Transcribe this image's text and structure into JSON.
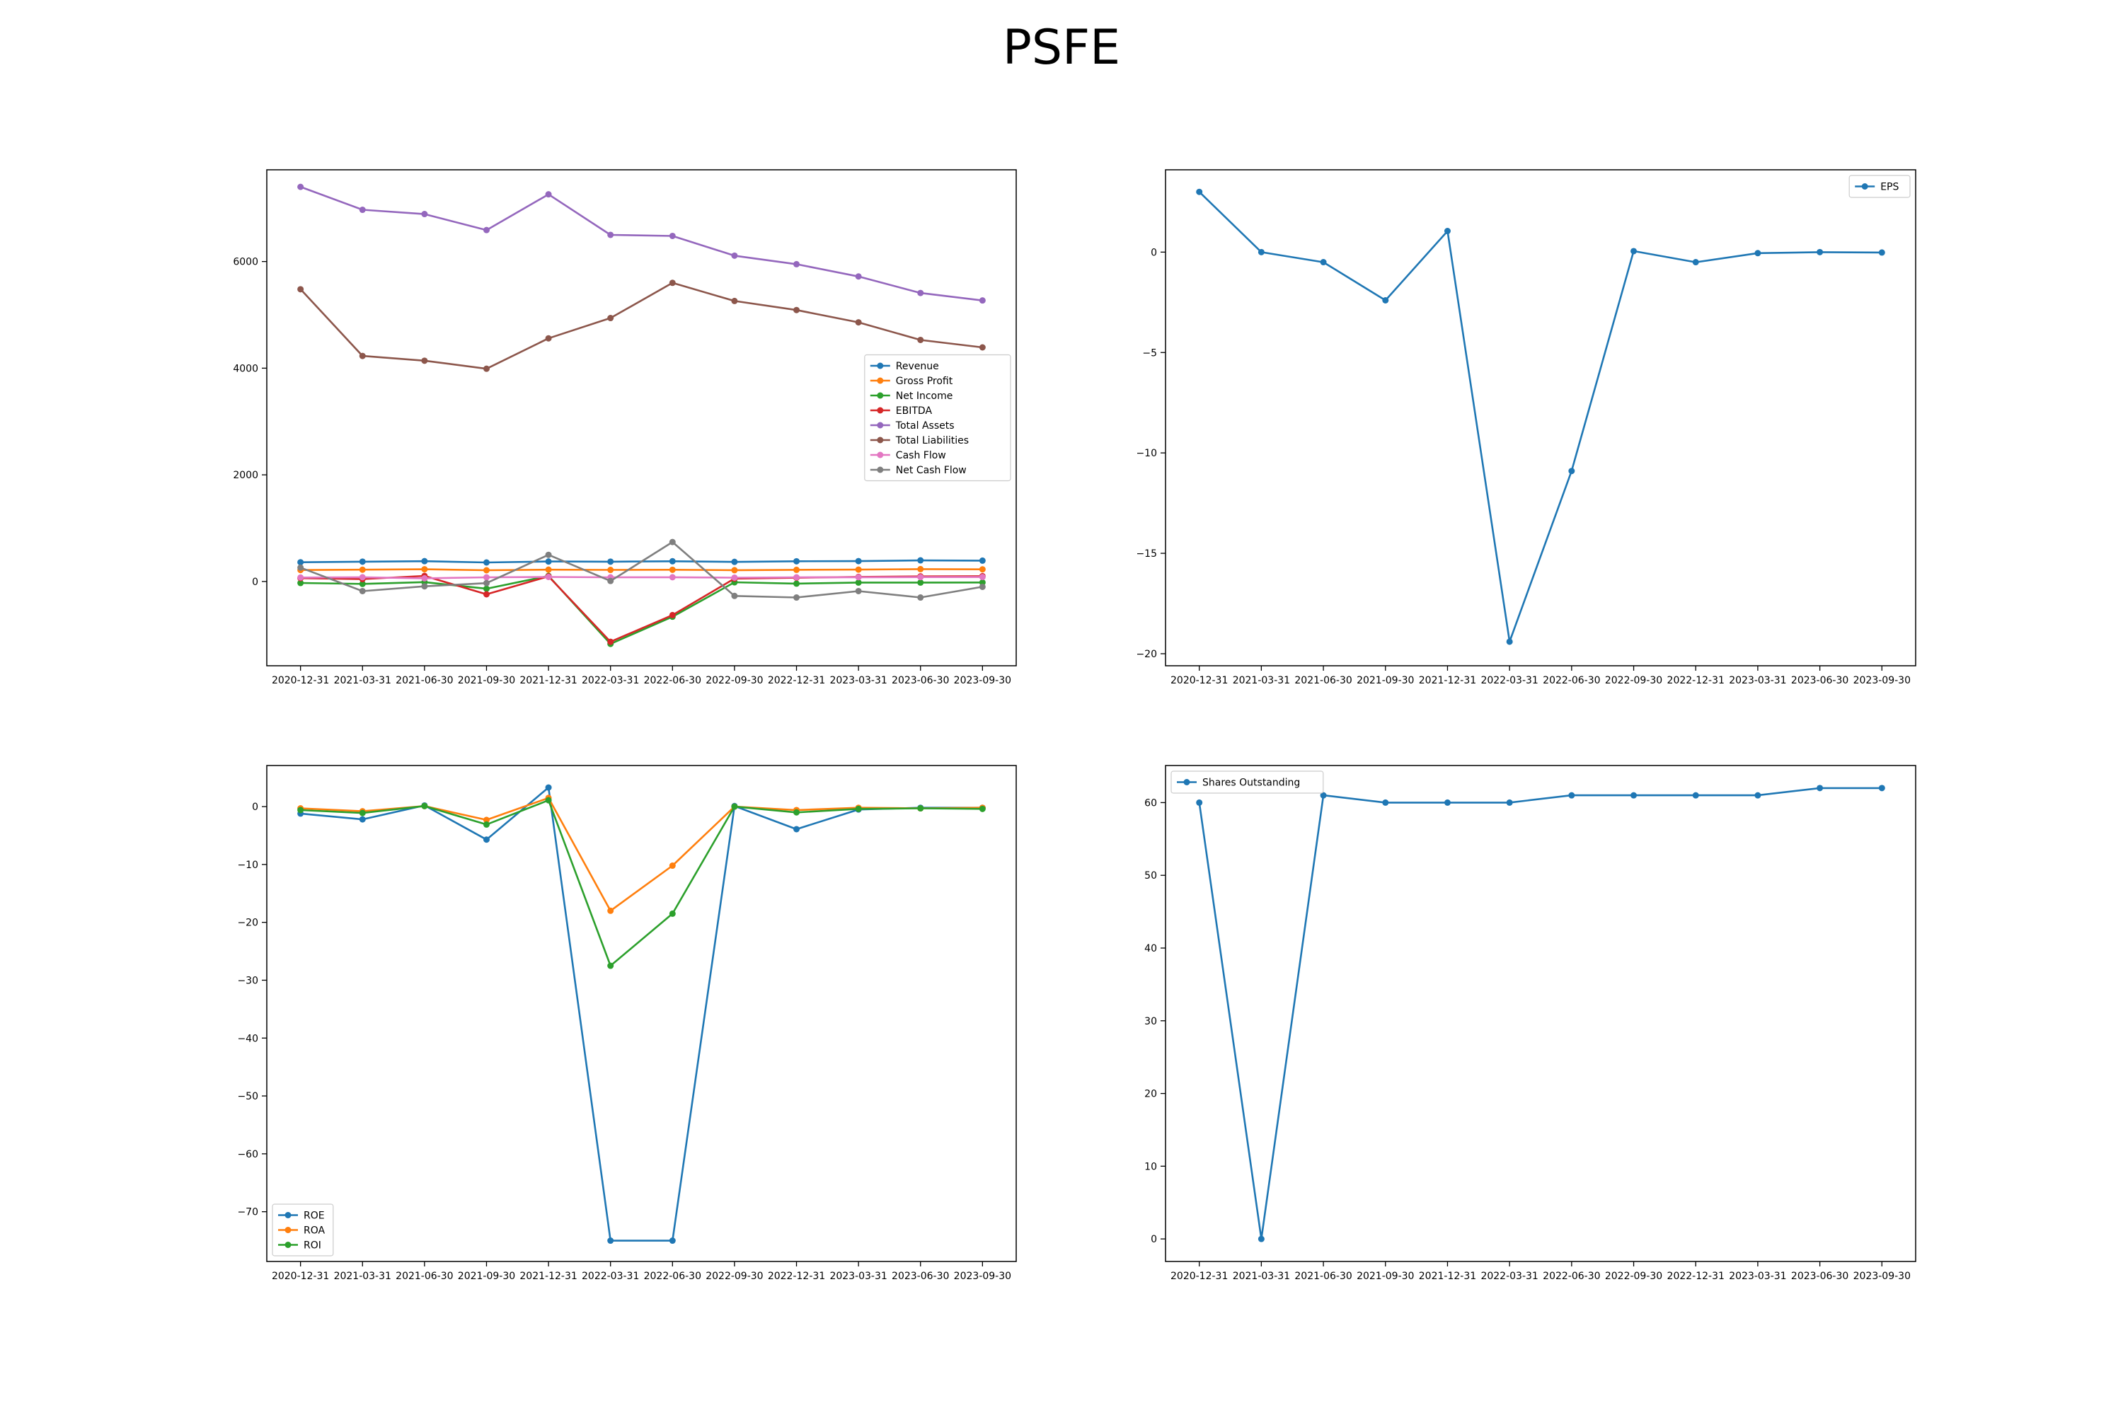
{
  "title": "PSFE",
  "chart_data": [
    {
      "type": "line",
      "x": [
        "2020-12-31",
        "2021-03-31",
        "2021-06-30",
        "2021-09-30",
        "2021-12-31",
        "2022-03-31",
        "2022-06-30",
        "2022-09-30",
        "2022-12-31",
        "2023-03-31",
        "2023-06-30",
        "2023-09-30"
      ],
      "ylim": [
        -1580,
        7720
      ],
      "yticks": [
        0,
        2000,
        4000,
        6000
      ],
      "ytick_labels": [
        "0",
        "2000",
        "4000",
        "6000"
      ],
      "legend": {
        "loc": "center right"
      },
      "series": [
        {
          "name": "Revenue",
          "color": "#1f77b4",
          "values": [
            361,
            372,
            381,
            357,
            375,
            372,
            380,
            368,
            379,
            382,
            396,
            391
          ]
        },
        {
          "name": "Gross Profit",
          "color": "#ff7f0e",
          "values": [
            215,
            221,
            230,
            211,
            222,
            217,
            220,
            212,
            219,
            223,
            232,
            228
          ]
        },
        {
          "name": "Net Income",
          "color": "#2ca02c",
          "values": [
            -28,
            -45,
            -12,
            -135,
            105,
            -1170,
            -660,
            -15,
            -40,
            -20,
            -20,
            -18
          ]
        },
        {
          "name": "EBITDA",
          "color": "#d62728",
          "values": [
            62,
            45,
            105,
            -240,
            97,
            -1130,
            -630,
            54,
            70,
            86,
            96,
            100
          ]
        },
        {
          "name": "Total Assets",
          "color": "#9467bd",
          "values": [
            7400,
            6970,
            6890,
            6590,
            7260,
            6500,
            6480,
            6110,
            5950,
            5720,
            5410,
            5270
          ]
        },
        {
          "name": "Total Liabilities",
          "color": "#8c564b",
          "values": [
            5480,
            4230,
            4140,
            3990,
            4560,
            4940,
            5600,
            5260,
            5090,
            4860,
            4530,
            4390
          ]
        },
        {
          "name": "Cash Flow",
          "color": "#e377c2",
          "values": [
            75,
            80,
            60,
            78,
            85,
            78,
            80,
            72,
            78,
            80,
            82,
            84
          ]
        },
        {
          "name": "Net Cash Flow",
          "color": "#7f7f7f",
          "values": [
            260,
            -180,
            -90,
            -30,
            500,
            10,
            740,
            -270,
            -300,
            -180,
            -300,
            -100
          ]
        }
      ]
    },
    {
      "type": "line",
      "x": [
        "2020-12-31",
        "2021-03-31",
        "2021-06-30",
        "2021-09-30",
        "2021-12-31",
        "2022-03-31",
        "2022-06-30",
        "2022-09-30",
        "2022-12-31",
        "2023-03-31",
        "2023-06-30",
        "2023-09-30"
      ],
      "ylim": [
        -20.6,
        4.1
      ],
      "yticks": [
        -20,
        -15,
        -10,
        -5,
        0
      ],
      "ytick_labels": [
        "−20",
        "−15",
        "−10",
        "−5",
        "0"
      ],
      "legend": {
        "loc": "upper right"
      },
      "series": [
        {
          "name": "EPS",
          "color": "#1f77b4",
          "values": [
            3.0,
            0.0,
            -0.5,
            -2.4,
            1.05,
            -19.4,
            -10.9,
            0.05,
            -0.5,
            -0.05,
            0.0,
            -0.02
          ]
        }
      ]
    },
    {
      "type": "line",
      "x": [
        "2020-12-31",
        "2021-03-31",
        "2021-06-30",
        "2021-09-30",
        "2021-12-31",
        "2022-03-31",
        "2022-06-30",
        "2022-09-30",
        "2022-12-31",
        "2023-03-31",
        "2023-06-30",
        "2023-09-30"
      ],
      "ylim": [
        -78.6,
        7.1
      ],
      "yticks": [
        -70,
        -60,
        -50,
        -40,
        -30,
        -20,
        -10,
        0
      ],
      "ytick_labels": [
        "−70",
        "−60",
        "−50",
        "−40",
        "−30",
        "−20",
        "−10",
        "0"
      ],
      "legend": {
        "loc": "lower left"
      },
      "series": [
        {
          "name": "ROE",
          "color": "#1f77b4",
          "values": [
            -1.2,
            -2.2,
            0.2,
            -5.7,
            3.3,
            -75.0,
            -75.0,
            0.1,
            -3.9,
            -0.5,
            -0.2,
            -0.2
          ]
        },
        {
          "name": "ROA",
          "color": "#ff7f0e",
          "values": [
            -0.3,
            -0.8,
            0.1,
            -2.3,
            1.5,
            -18.0,
            -10.2,
            0.0,
            -0.6,
            -0.2,
            -0.3,
            -0.2
          ]
        },
        {
          "name": "ROI",
          "color": "#2ca02c",
          "values": [
            -0.6,
            -1.1,
            0.1,
            -3.1,
            1.1,
            -27.5,
            -18.5,
            0.0,
            -1.0,
            -0.4,
            -0.3,
            -0.4
          ]
        }
      ]
    },
    {
      "type": "line",
      "x": [
        "2020-12-31",
        "2021-03-31",
        "2021-06-30",
        "2021-09-30",
        "2021-12-31",
        "2022-03-31",
        "2022-06-30",
        "2022-09-30",
        "2022-12-31",
        "2023-03-31",
        "2023-06-30",
        "2023-09-30"
      ],
      "ylim": [
        -3.1,
        65.1
      ],
      "yticks": [
        0,
        10,
        20,
        30,
        40,
        50,
        60
      ],
      "ytick_labels": [
        "0",
        "10",
        "20",
        "30",
        "40",
        "50",
        "60"
      ],
      "legend": {
        "loc": "upper left"
      },
      "series": [
        {
          "name": "Shares Outstanding",
          "color": "#1f77b4",
          "values": [
            60,
            0,
            61,
            60,
            60,
            60,
            61,
            61,
            61,
            61,
            62,
            62
          ]
        }
      ]
    }
  ]
}
